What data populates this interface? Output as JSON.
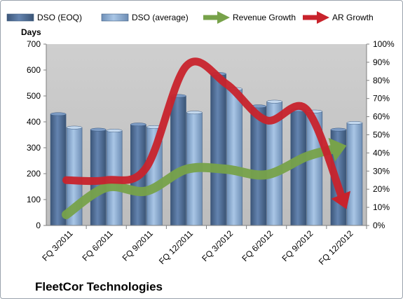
{
  "chart_data": {
    "type": "bar",
    "company": "FleetCor Technologies",
    "ylabel_left": "Days",
    "categories": [
      "FQ 3/2011",
      "FQ 6/2011",
      "FQ 9/2011",
      "FQ 12/2011",
      "FQ 3/2012",
      "FQ 6/2012",
      "FQ 9/2012",
      "FQ 12/2012"
    ],
    "y_left": {
      "min": 0,
      "max": 700,
      "step": 100,
      "ticks": [
        "0",
        "100",
        "200",
        "300",
        "400",
        "500",
        "600",
        "700"
      ]
    },
    "y_right": {
      "min": 0,
      "max": 1.0,
      "step": 0.1,
      "ticks": [
        "0%",
        "10%",
        "20%",
        "30%",
        "40%",
        "50%",
        "60%",
        "70%",
        "80%",
        "90%",
        "100%"
      ]
    },
    "bar_series": [
      {
        "name": "DSO (EOQ)",
        "color": "#4f6f99",
        "values": [
          430,
          370,
          390,
          500,
          585,
          460,
          445,
          370
        ]
      },
      {
        "name": "DSO (average)",
        "color": "#8eb1d9",
        "values": [
          378,
          366,
          380,
          436,
          527,
          478,
          440,
          396
        ]
      }
    ],
    "line_series": [
      {
        "name": "Revenue Growth",
        "color": "#77a24a",
        "axis": "right",
        "values": [
          0.06,
          0.21,
          0.19,
          0.31,
          0.31,
          0.28,
          0.38,
          0.44
        ]
      },
      {
        "name": "AR Growth",
        "color": "#c8232c",
        "axis": "right",
        "values": [
          0.25,
          0.25,
          0.32,
          0.88,
          0.78,
          0.58,
          0.64,
          0.09
        ]
      }
    ],
    "grid": false,
    "plot_background": "#c0c0c0",
    "legend_position": "top"
  }
}
